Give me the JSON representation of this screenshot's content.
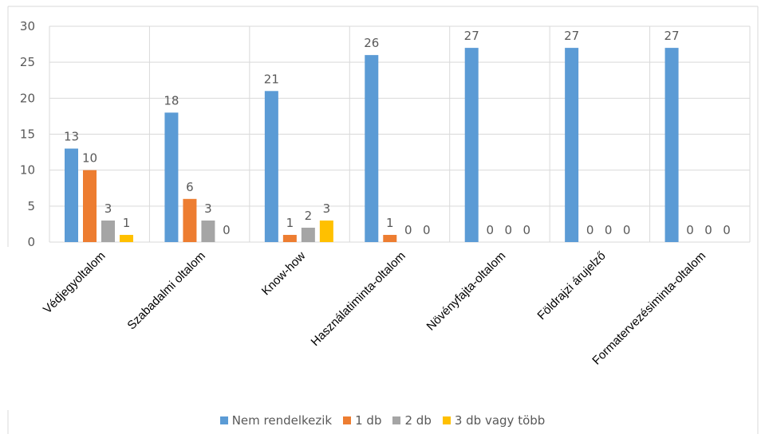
{
  "chart_data": {
    "type": "bar",
    "categories": [
      "Védjegyoltalom",
      "Szabadalmi oltalom",
      "Know-how",
      "Használatiminta-oltalom",
      "Növényfajta-oltalom",
      "Földrajzi árujelző",
      "Formatervezésiminta-oltalom"
    ],
    "series": [
      {
        "name": "Nem rendelkezik",
        "color": "#5B9BD5",
        "values": [
          13,
          18,
          21,
          26,
          27,
          27,
          27
        ]
      },
      {
        "name": "1 db",
        "color": "#ED7D31",
        "values": [
          10,
          6,
          1,
          1,
          0,
          0,
          0
        ]
      },
      {
        "name": "2 db",
        "color": "#A5A5A5",
        "values": [
          3,
          3,
          2,
          0,
          0,
          0,
          0
        ]
      },
      {
        "name": "3 db vagy több",
        "color": "#FFC000",
        "values": [
          1,
          0,
          3,
          0,
          0,
          0,
          0
        ]
      }
    ],
    "yticks": [
      "0",
      "5",
      "10",
      "15",
      "20",
      "25",
      "30"
    ],
    "ylim": [
      0,
      30
    ],
    "grid": true,
    "legend": "bottom"
  }
}
